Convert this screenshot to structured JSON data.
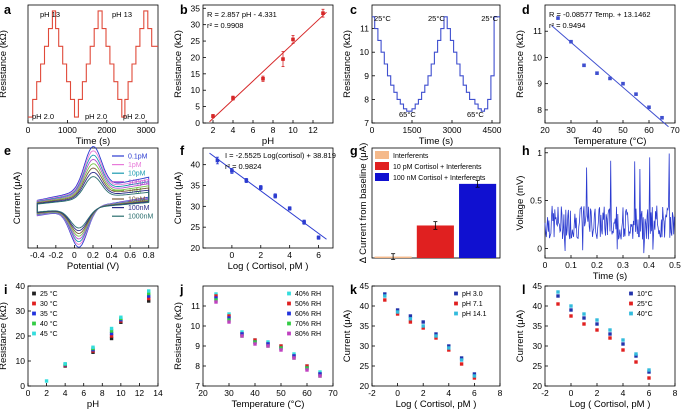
{
  "chart_data": [
    {
      "id": "a",
      "label": "a",
      "type": "line",
      "xlabel": "Time (s)",
      "ylabel": "Resistance (kΩ)",
      "xlim": [
        0,
        3300
      ],
      "ylim": [
        0,
        40
      ],
      "xticks": [
        0,
        1000,
        2000,
        3000
      ],
      "yticks": [],
      "x": [
        0,
        120,
        120,
        220,
        220,
        320,
        320,
        420,
        420,
        520,
        520,
        620,
        620,
        700,
        700,
        780,
        780,
        880,
        880,
        980,
        980,
        1080,
        1080,
        1180,
        1180,
        1280,
        1280,
        1380,
        1380,
        1480,
        1480,
        1580,
        1580,
        1680,
        1680,
        1780,
        1780,
        1880,
        1880,
        1980,
        1980,
        2080,
        2080,
        2180,
        2180,
        2280,
        2280,
        2380,
        2380,
        2460,
        2460,
        2540,
        2540,
        2640,
        2640,
        2740,
        2740,
        2840,
        2840,
        2940,
        2940,
        3040,
        3040,
        3140,
        3140,
        3300
      ],
      "y": [
        2,
        2,
        8,
        8,
        14,
        14,
        20,
        20,
        26,
        26,
        32,
        32,
        38,
        38,
        32,
        32,
        26,
        26,
        20,
        20,
        14,
        14,
        8,
        8,
        2,
        2,
        8,
        8,
        14,
        14,
        20,
        20,
        26,
        26,
        32,
        32,
        38,
        38,
        32,
        32,
        26,
        26,
        20,
        20,
        14,
        14,
        8,
        8,
        2,
        2,
        8,
        8,
        14,
        14,
        20,
        20,
        26,
        26,
        32,
        32,
        38,
        38,
        32,
        32,
        26,
        26
      ],
      "color": "#e04a3a",
      "annotations": [
        "pH 13",
        "pH 13",
        "pH 2.0",
        "pH 2.0",
        "pH 2.0"
      ]
    },
    {
      "id": "b",
      "label": "b",
      "type": "scatter",
      "xlabel": "pH",
      "ylabel": "Resistance (kΩ)",
      "xlim": [
        1,
        14
      ],
      "ylim": [
        0,
        36
      ],
      "xticks": [
        2,
        4,
        6,
        8,
        10,
        12
      ],
      "yticks": [
        0,
        5,
        10,
        15,
        20,
        25,
        30,
        35
      ],
      "x": [
        2,
        4,
        7,
        9,
        10,
        13
      ],
      "y": [
        2.1,
        7.6,
        13.5,
        19.5,
        25.5,
        33.5
      ],
      "err": [
        0.5,
        0.6,
        0.8,
        2.3,
        1.2,
        1.2
      ],
      "fit": {
        "slope": 2.857,
        "intercept": -4.331
      },
      "color": "#d62728",
      "annotations": [
        "R = 2.857 pH - 4.331",
        "r² = 0.9908"
      ]
    },
    {
      "id": "c",
      "label": "c",
      "type": "line",
      "xlabel": "Time (s)",
      "ylabel": "Resistance (kΩ)",
      "xlim": [
        0,
        4800
      ],
      "ylim": [
        7,
        12
      ],
      "xticks": [
        0,
        1500,
        3000,
        4500
      ],
      "yticks": [
        7,
        8,
        9,
        10,
        11
      ],
      "x": [
        0,
        100,
        100,
        220,
        220,
        340,
        340,
        460,
        460,
        580,
        580,
        700,
        700,
        820,
        820,
        940,
        940,
        1060,
        1060,
        1180,
        1180,
        1300,
        1300,
        1500,
        1500,
        1620,
        1620,
        1740,
        1740,
        1860,
        1860,
        1980,
        1980,
        2100,
        2100,
        2220,
        2220,
        2340,
        2340,
        2460,
        2460,
        2580,
        2580,
        2700,
        2700,
        2820,
        2820,
        2940,
        2940,
        3060,
        3060,
        3180,
        3180,
        3300,
        3300,
        3420,
        3420,
        3540,
        3540,
        3660,
        3660,
        3860,
        3860,
        3980,
        3980,
        4100,
        4100,
        4220,
        4220,
        4340,
        4340,
        4460,
        4460,
        4580,
        4580,
        4800
      ],
      "y": [
        11.5,
        11.5,
        11,
        11,
        10.5,
        10.5,
        10,
        10,
        9.5,
        9.5,
        9,
        9,
        8.6,
        8.6,
        8.3,
        8.3,
        8,
        8,
        7.8,
        7.8,
        7.6,
        7.6,
        7.5,
        7.5,
        7.6,
        7.6,
        7.8,
        7.8,
        8,
        8,
        8.3,
        8.3,
        8.6,
        8.6,
        9,
        9,
        9.5,
        9.5,
        10,
        10,
        10.5,
        10.5,
        11,
        11,
        11.5,
        11.5,
        11,
        11,
        10.5,
        10.5,
        10,
        10,
        9.5,
        9.5,
        9,
        9,
        8.6,
        8.6,
        8.3,
        8.3,
        8,
        8,
        7.8,
        7.8,
        7.6,
        7.6,
        7.5,
        7.5,
        7.6,
        7.6,
        8,
        8,
        9,
        9,
        11.5,
        11.5
      ],
      "color": "#3f4fcf",
      "annotations": [
        "25°C",
        "25°C",
        "25°C",
        "65°C",
        "65°C"
      ]
    },
    {
      "id": "d",
      "label": "d",
      "type": "scatter",
      "xlabel": "Temperature (°C)",
      "ylabel": "Resistance (kΩ)",
      "xlim": [
        20,
        70
      ],
      "ylim": [
        7.5,
        12
      ],
      "xticks": [
        20,
        30,
        40,
        50,
        60,
        70
      ],
      "yticks": [
        8,
        9,
        10,
        11
      ],
      "x": [
        25,
        30,
        35,
        40,
        45,
        50,
        55,
        60,
        65
      ],
      "y": [
        11.5,
        10.6,
        9.7,
        9.4,
        9.2,
        9.0,
        8.6,
        8.1,
        7.7
      ],
      "fit": {
        "slope": -0.08577,
        "intercept": 13.1462
      },
      "color": "#3f4fcf",
      "annotations": [
        "R = -0.08577 Temp. + 13.1462",
        "r² = 0.9494"
      ]
    },
    {
      "id": "e",
      "label": "e",
      "type": "line",
      "xlabel": "Potential (V)",
      "ylabel": "Current (μA)",
      "xlim": [
        -0.5,
        0.9
      ],
      "ylim": [
        -60,
        70
      ],
      "xticks": [
        -0.4,
        -0.2,
        0,
        0.2,
        0.4,
        0.6,
        0.8
      ],
      "yticks": [],
      "series": [
        {
          "name": "0.1pM",
          "color": "#2b3bd0"
        },
        {
          "name": "1pM",
          "color": "#e87ad9"
        },
        {
          "name": "10pM",
          "color": "#1a9ab0"
        },
        {
          "name": "100pM",
          "color": "#b34fd0"
        },
        {
          "name": "1nM",
          "color": "#79c34a"
        },
        {
          "name": "10nM",
          "color": "#7a5d3a"
        },
        {
          "name": "100nM",
          "color": "#2d2d8a"
        },
        {
          "name": "1000nM",
          "color": "#2a6e6e"
        }
      ]
    },
    {
      "id": "f",
      "label": "f",
      "type": "scatter",
      "xlabel": "Log ( Cortisol, pM )",
      "ylabel": "Current (μA)",
      "xlim": [
        -2,
        7
      ],
      "ylim": [
        20,
        44
      ],
      "xticks": [
        0,
        2,
        4,
        6
      ],
      "yticks": [
        20,
        25,
        30,
        35,
        40
      ],
      "x": [
        -1,
        0,
        1,
        2,
        3,
        4,
        5,
        6
      ],
      "y": [
        41,
        38.5,
        36.2,
        34.5,
        32.5,
        29.5,
        26.2,
        22.5
      ],
      "err": [
        0.8,
        0.6,
        0.5,
        0.5,
        0.5,
        0.4,
        0.5,
        0.4
      ],
      "fit": {
        "slope": -2.5525,
        "intercept": 38.819
      },
      "color": "#2b3bd0",
      "annotations": [
        "I = -2.5525 Log(cortisol) + 38.819",
        "r² = 0.9824"
      ]
    },
    {
      "id": "g",
      "label": "g",
      "type": "bar",
      "xlabel": "",
      "ylabel": "Δ Current from baseline (μA)",
      "categories": [
        "Interferents",
        "10 pM Cortisol + Interferents",
        "100 nM Cortisol + Interferents"
      ],
      "values": [
        0.3,
        6.8,
        15.5
      ],
      "err": [
        0.6,
        0.8,
        0.7
      ],
      "ylim": [
        0,
        23
      ],
      "colors": [
        "#f5b98a",
        "#e02020",
        "#1010d0"
      ],
      "legend": "top-left"
    },
    {
      "id": "h",
      "label": "h",
      "type": "line",
      "xlabel": "Time (s)",
      "ylabel": "Voltage (mV)",
      "xlim": [
        0,
        0.5
      ],
      "ylim": [
        -0.1,
        1.05
      ],
      "xticks": [
        0,
        0.1,
        0.2,
        0.3,
        0.4,
        0.5
      ],
      "yticks": [
        0,
        0.5,
        1.0
      ],
      "color": "#2b3bd0"
    },
    {
      "id": "i",
      "label": "i",
      "type": "scatter",
      "xlabel": "pH",
      "ylabel": "Resistance (kΩ)",
      "xlim": [
        0,
        14
      ],
      "ylim": [
        0,
        40
      ],
      "xticks": [
        0,
        2,
        4,
        6,
        8,
        10,
        12,
        14
      ],
      "yticks": [
        0,
        10,
        20,
        30,
        40
      ],
      "series": [
        {
          "name": "25 °C",
          "color": "#222222",
          "x": [
            4,
            7,
            9,
            10,
            13
          ],
          "y": [
            8,
            13.5,
            19,
            25.5,
            34
          ]
        },
        {
          "name": "30 °C",
          "color": "#e02020",
          "x": [
            4,
            7,
            9,
            10,
            13
          ],
          "y": [
            8.2,
            14,
            20,
            26,
            35
          ]
        },
        {
          "name": "35 °C",
          "color": "#2233dd",
          "x": [
            4,
            7,
            9,
            10,
            13
          ],
          "y": [
            8.5,
            14.5,
            21,
            26.5,
            36
          ]
        },
        {
          "name": "40 °C",
          "color": "#33cc44",
          "x": [
            4,
            7,
            9,
            10,
            13
          ],
          "y": [
            8.7,
            15,
            22,
            27,
            37
          ]
        },
        {
          "name": "45 °C",
          "color": "#33dddd",
          "x": [
            2,
            4,
            7,
            9,
            10,
            13
          ],
          "y": [
            2,
            8.9,
            15.5,
            23,
            27.5,
            38
          ]
        }
      ],
      "legend": "top-left"
    },
    {
      "id": "j",
      "label": "j",
      "type": "scatter",
      "xlabel": "Temperature (°C)",
      "ylabel": "Resistance (kΩ)",
      "xlim": [
        20,
        70
      ],
      "ylim": [
        7,
        12
      ],
      "xticks": [
        20,
        30,
        40,
        50,
        60,
        70
      ],
      "yticks": [
        7,
        8,
        9,
        10,
        11
      ],
      "series": [
        {
          "name": "40% RH",
          "color": "#33dddd",
          "x": [
            25,
            30,
            35,
            40,
            45,
            50,
            55,
            60,
            65
          ],
          "y": [
            11.6,
            10.6,
            9.7,
            9.3,
            9.2,
            9.0,
            8.6,
            8.0,
            7.7
          ]
        },
        {
          "name": "50% RH",
          "color": "#e02020",
          "x": [
            25,
            30,
            35,
            40,
            45,
            50,
            55,
            60,
            65
          ],
          "y": [
            11.5,
            10.5,
            9.6,
            9.3,
            9.1,
            9.0,
            8.5,
            8.0,
            7.6
          ]
        },
        {
          "name": "60% RH",
          "color": "#2233dd",
          "x": [
            25,
            30,
            35,
            40,
            45,
            50,
            55,
            60,
            65
          ],
          "y": [
            11.4,
            10.4,
            9.6,
            9.2,
            9.1,
            8.9,
            8.5,
            7.9,
            7.6
          ]
        },
        {
          "name": "70% RH",
          "color": "#33cc44",
          "x": [
            25,
            30,
            35,
            40,
            45,
            50,
            55,
            60,
            65
          ],
          "y": [
            11.3,
            10.3,
            9.5,
            9.2,
            9.0,
            8.9,
            8.4,
            7.9,
            7.5
          ]
        },
        {
          "name": "80% RH",
          "color": "#c040c0",
          "x": [
            25,
            30,
            35,
            40,
            45,
            50,
            55,
            60,
            65
          ],
          "y": [
            11.2,
            10.2,
            9.5,
            9.1,
            9.0,
            8.8,
            8.4,
            7.8,
            7.5
          ]
        }
      ],
      "legend": "top-right"
    },
    {
      "id": "k",
      "label": "k",
      "type": "scatter",
      "xlabel": "Log ( Cortisol, pM )",
      "ylabel": "Current (μA)",
      "xlim": [
        -2,
        8
      ],
      "ylim": [
        20,
        45
      ],
      "xticks": [
        -2,
        0,
        2,
        4,
        6,
        8
      ],
      "yticks": [
        20,
        25,
        30,
        35,
        40,
        45
      ],
      "series": [
        {
          "name": "pH 3.0",
          "color": "#2233aa",
          "x": [
            -1,
            0,
            1,
            2,
            3,
            4,
            5,
            6
          ],
          "y": [
            43,
            39,
            37.5,
            36,
            33,
            30,
            27,
            23
          ]
        },
        {
          "name": "pH 7.1",
          "color": "#e02020",
          "x": [
            -1,
            0,
            1,
            2,
            3,
            4,
            5,
            6
          ],
          "y": [
            41.5,
            38,
            36,
            34.5,
            32,
            29,
            25.5,
            22
          ]
        },
        {
          "name": "pH 14.1",
          "color": "#33bbdd",
          "x": [
            -1,
            0,
            1,
            2,
            3,
            4,
            5,
            6
          ],
          "y": [
            42.5,
            38.5,
            36.8,
            35,
            32.5,
            29.5,
            26.5,
            22.5
          ]
        }
      ],
      "legend": "top-right"
    },
    {
      "id": "l",
      "label": "l",
      "type": "scatter",
      "xlabel": "Log ( Cortisol, pM )",
      "ylabel": "Current (μA)",
      "xlim": [
        -2,
        8
      ],
      "ylim": [
        20,
        45
      ],
      "xticks": [
        -2,
        0,
        2,
        4,
        6,
        8
      ],
      "yticks": [
        20,
        25,
        30,
        35,
        40,
        45
      ],
      "series": [
        {
          "name": "10°C",
          "color": "#2233aa",
          "x": [
            -1,
            0,
            1,
            2,
            3,
            4,
            5,
            6
          ],
          "y": [
            42.5,
            39,
            37,
            35.5,
            33,
            30.5,
            27.5,
            23.5
          ]
        },
        {
          "name": "25°C",
          "color": "#e02020",
          "x": [
            -1,
            0,
            1,
            2,
            3,
            4,
            5,
            6
          ],
          "y": [
            40.5,
            37.5,
            35.5,
            34,
            32,
            29,
            26,
            22
          ]
        },
        {
          "name": "40°C",
          "color": "#33bbdd",
          "x": [
            -1,
            0,
            1,
            2,
            3,
            4,
            5,
            6
          ],
          "y": [
            43.5,
            40,
            38,
            36.5,
            34,
            31.5,
            28,
            24
          ]
        }
      ],
      "legend": "top-right"
    }
  ]
}
